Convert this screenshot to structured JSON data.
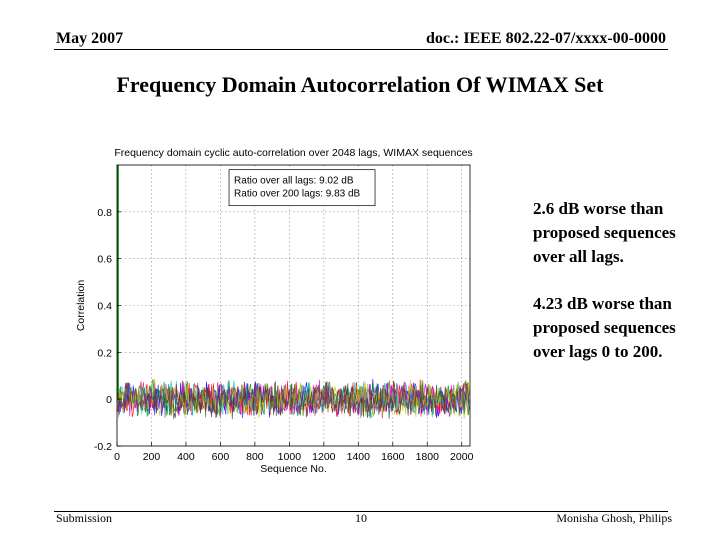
{
  "header": {
    "date": "May 2007",
    "doc_id": "doc.: IEEE 802.22-07/xxxx-00-0000"
  },
  "slide_title": "Frequency Domain Autocorrelation Of WIMAX Set",
  "notes": [
    {
      "lines": [
        "2.6 dB worse than",
        "proposed sequences",
        "over all lags."
      ]
    },
    {
      "lines": [
        "4.23 dB worse than",
        "proposed sequences",
        "over lags 0 to 200."
      ]
    }
  ],
  "footer": {
    "left": "Submission",
    "page": "10",
    "author": "Monisha Ghosh, Philips"
  },
  "chart_data": {
    "type": "line",
    "title": "Frequency domain cyclic auto-correlation over 2048 lags, WIMAX sequences",
    "xlabel": "Sequence No.",
    "ylabel": "Correlation",
    "xlim": [
      0,
      2048
    ],
    "ylim": [
      -0.2,
      1.0
    ],
    "xticks": [
      0,
      200,
      400,
      600,
      800,
      1000,
      1200,
      1400,
      1600,
      1800,
      2000
    ],
    "yticks": [
      -0.2,
      0,
      0.2,
      0.4,
      0.6,
      0.8
    ],
    "grid": true,
    "legend_box": {
      "lines": [
        "Ratio over all lags:   9.02 dB",
        "Ratio over 200 lags:  9.83 dB"
      ],
      "placement": "upper-center"
    },
    "peak": {
      "x": 0,
      "y": 1.0
    },
    "noise_band": {
      "center": 0.0,
      "min": -0.09,
      "max": 0.09
    },
    "series_colors": [
      "#0000ff",
      "#008000",
      "#ff0000",
      "#00bfbf",
      "#bf00bf",
      "#bfbf00",
      "#404040"
    ]
  }
}
